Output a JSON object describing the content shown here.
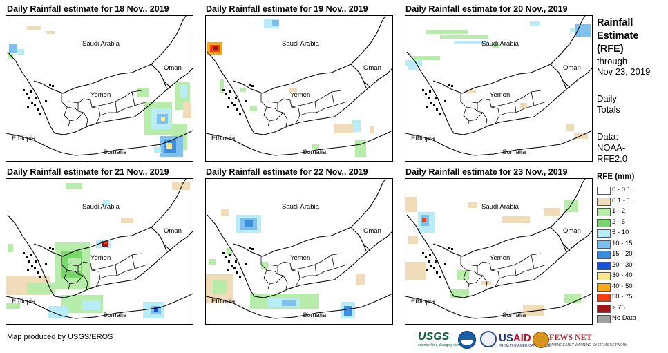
{
  "panels": [
    {
      "title": "Daily Rainfall estimate for 18 Nov., 2019",
      "labels": {
        "saudi": "Saudi Arabia",
        "oman": "Oman",
        "yemen": "Yemen",
        "ethiopia": "Ethiopia",
        "somalia": "Somalia"
      }
    },
    {
      "title": "Daily Rainfall estimate for 19 Nov., 2019",
      "labels": {
        "saudi": "Saudi Arabia",
        "oman": "Oman",
        "yemen": "Yemen",
        "ethiopia": "Ethiopia",
        "somalia": "Somalia"
      }
    },
    {
      "title": "Daily Rainfall estimate for 20 Nov., 2019",
      "labels": {
        "saudi": "Saudi Arabia",
        "oman": "Oman",
        "yemen": "Yemen",
        "ethiopia": "Ethiopia",
        "somalia": "Somalia"
      }
    },
    {
      "title": "Daily Rainfall estimate for 21 Nov., 2019",
      "labels": {
        "saudi": "Saudi Arabia",
        "oman": "Oman",
        "yemen": "Yemen",
        "ethiopia": "Ethiopia",
        "somalia": "Somalia"
      }
    },
    {
      "title": "Daily Rainfall estimate for 22 Nov., 2019",
      "labels": {
        "saudi": "Saudi Arabia",
        "oman": "Oman",
        "yemen": "Yemen",
        "ethiopia": "Ethiopia",
        "somalia": "Somalia"
      }
    },
    {
      "title": "Daily Rainfall estimate for 23 Nov., 2019",
      "labels": {
        "saudi": "Saudi Arabia",
        "oman": "Oman",
        "yemen": "Yemen",
        "ethiopia": "Ethiopia",
        "somalia": "Somalia"
      }
    }
  ],
  "sidebar": {
    "title_line1": "Rainfall",
    "title_line2": "Estimate",
    "title_line3": "(RFE)",
    "sub_line1": "through",
    "sub_line2": "Nov 23, 2019",
    "daily_line1": "Daily",
    "daily_line2": "Totals",
    "data_line1": "Data:",
    "data_line2": "NOAA-",
    "data_line3": "RFE2.0"
  },
  "legend": {
    "title": "RFE (mm)",
    "items": [
      {
        "label": "0 - 0.1",
        "color": "#ffffff"
      },
      {
        "label": "0.1 - 1",
        "color": "#f0dcb8"
      },
      {
        "label": "1 - 2",
        "color": "#b8ecaa"
      },
      {
        "label": "2 - 5",
        "color": "#78d66a"
      },
      {
        "label": "5 - 10",
        "color": "#b8ecf6"
      },
      {
        "label": "10 - 15",
        "color": "#80c0ee"
      },
      {
        "label": "15 - 20",
        "color": "#3c8ee0"
      },
      {
        "label": "20 - 30",
        "color": "#1a50d8"
      },
      {
        "label": "30 - 40",
        "color": "#fae68c"
      },
      {
        "label": "40 - 50",
        "color": "#f6a818"
      },
      {
        "label": "50 - 75",
        "color": "#f23e10"
      },
      {
        "label": "> 75",
        "color": "#a01616"
      },
      {
        "label": "No Data",
        "color": "#a0a0a0"
      }
    ]
  },
  "footer": {
    "credit": "Map produced by USGS/EROS",
    "logos": {
      "usgs": "USGS",
      "usgs_tagline": "science for a changing world",
      "usaid_a": "US",
      "usaid_b": "AID",
      "usaid_tagline": "FROM THE AMERICAN PEOPLE",
      "fews": "FEWS NET",
      "fews_tagline": "FAMINE EARLY WARNING SYSTEMS NETWORK"
    }
  }
}
